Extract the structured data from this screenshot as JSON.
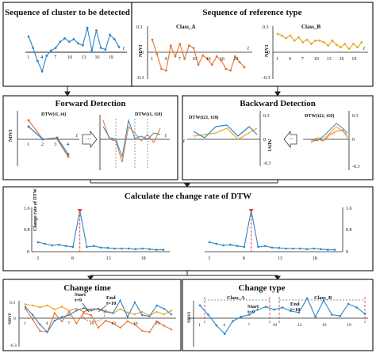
{
  "panels": {
    "top_left_title": "Sequence of cluster to be detected",
    "top_right_title": "Sequence of reference type",
    "forward_title": "Forward Detection",
    "backward_title": "Backward Detection",
    "rate_title": "Calculate the change rate of DTW",
    "change_time_title": "Change time",
    "change_type_title": "Change type"
  },
  "labels": {
    "ndvi": "NDVI",
    "t": "t",
    "class_a": "Class_A",
    "class_b": "Class_B",
    "dtw_fwd_1": "DTW(t1, t4)",
    "dtw_fwd_2": "DTW(t1, t10)",
    "dtw_bwd_1": "DTW(t21, t18)",
    "dtw_bwd_2": "DTW(t21, t10)",
    "rate_axis": "Change rate of DTW",
    "start": "Start",
    "t9": "t=9",
    "end": "End",
    "t10": "t=10",
    "ellipsis": "···"
  },
  "ticks": {
    "top_x": [
      "1",
      "4",
      "7",
      "10",
      "13",
      "16",
      "19"
    ],
    "ndvi_y": [
      "0.3",
      "0",
      "-0.3"
    ],
    "rate_x": [
      "3",
      "8",
      "13",
      "18"
    ],
    "rate_y": [
      "1.6",
      "0.8",
      "0"
    ],
    "fwd_x": [
      "1",
      "2",
      "3",
      "4"
    ],
    "fwd2_x": [
      "1",
      "2",
      "3",
      "4",
      "5",
      "6",
      "7",
      "8",
      "9",
      "10"
    ]
  },
  "series": {
    "cluster": [
      0.18,
      0.05,
      -0.1,
      -0.22,
      -0.04,
      0.02,
      0.05,
      0.12,
      0.16,
      0.12,
      0.15,
      0.1,
      0.08,
      0.28,
      0.02,
      0.25,
      0.05,
      0.03,
      0.2,
      0.15,
      0.06
    ],
    "class_a": [
      0.15,
      -0.02,
      -0.2,
      -0.22,
      0.08,
      -0.05,
      0.1,
      -0.08,
      0.08,
      0.05,
      -0.15,
      -0.04,
      -0.08,
      -0.15,
      -0.05,
      -0.1,
      -0.2,
      -0.22,
      -0.05,
      -0.12,
      -0.18
    ],
    "class_b": [
      0.22,
      0.2,
      0.17,
      0.2,
      0.14,
      0.18,
      0.12,
      0.15,
      0.1,
      0.14,
      0.14,
      0.12,
      0.08,
      0.14,
      0.09,
      0.06,
      0.1,
      0.04,
      0.1,
      0.06,
      0.12
    ],
    "rate": [
      0.3,
      0.25,
      0.2,
      0.22,
      0.18,
      0.15,
      1.3,
      0.15,
      0.18,
      0.13,
      0.12,
      0.1,
      0.1,
      0.1,
      0.08,
      0.1,
      0.08,
      0.06,
      0.06
    ]
  },
  "colors": {
    "cluster": "#2b86c8",
    "class_a": "#e8732a",
    "class_b": "#e8a620",
    "marker": "#e04040"
  }
}
